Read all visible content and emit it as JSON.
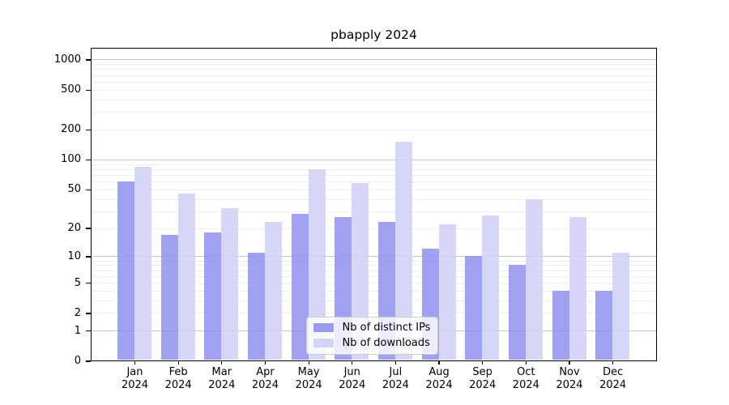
{
  "figure": {
    "background": "#ffffff",
    "text_color": "#000000"
  },
  "chart_data": {
    "type": "bar",
    "title": "pbapply 2024",
    "categories": [
      "Jan",
      "Feb",
      "Mar",
      "Apr",
      "May",
      "Jun",
      "Jul",
      "Aug",
      "Sep",
      "Oct",
      "Nov",
      "Dec"
    ],
    "year_label": "2024",
    "series": [
      {
        "name": "Nb of distinct IPs",
        "color": "#9090f0",
        "values": [
          60,
          17,
          18,
          11,
          28,
          26,
          23,
          12,
          10,
          8,
          4,
          4
        ]
      },
      {
        "name": "Nb of downloads",
        "color": "#cfcff7",
        "values": [
          85,
          45,
          32,
          23,
          80,
          58,
          150,
          22,
          27,
          40,
          26,
          11
        ]
      }
    ],
    "yticks": [
      0,
      1,
      2,
      5,
      10,
      20,
      50,
      100,
      200,
      500,
      1000
    ],
    "scale": "log1p",
    "ylim": [
      0,
      1300
    ],
    "xlabel": "",
    "ylabel": "",
    "grid": {
      "major_values": [
        1,
        10,
        100,
        1000
      ],
      "major_color": "#c6c6c6",
      "minor_color": "#ededed",
      "on": true
    },
    "legend_position": "lower center"
  }
}
